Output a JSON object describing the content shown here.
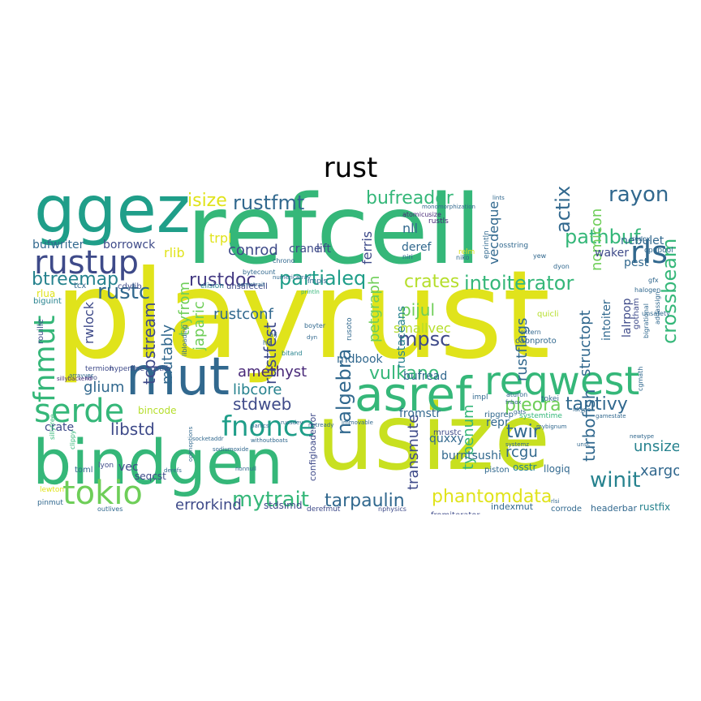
{
  "title": "rust",
  "palette": {
    "yellow": "#e0e31b",
    "lime": "#b5de2b",
    "light_green": "#6ece58",
    "green": "#35b779",
    "teal": "#1f9e89",
    "cyan_blue": "#26828e",
    "blue": "#31688e",
    "indigo": "#3e4a89",
    "purple": "#482878",
    "dark_purple": "#440154"
  },
  "words": [
    {
      "text": "playrust",
      "color": "#e0e31b"
    },
    {
      "text": "refcell",
      "color": "#35b779"
    },
    {
      "text": "usize",
      "color": "#c8e020"
    },
    {
      "text": "ggez",
      "color": "#1f9e89"
    },
    {
      "text": "bindgen",
      "color": "#35b779"
    },
    {
      "text": "mut",
      "color": "#31688e"
    },
    {
      "text": "asref",
      "color": "#35b779"
    },
    {
      "text": "reqwest",
      "color": "#35b779"
    },
    {
      "text": "rustup",
      "color": "#3e4a89"
    },
    {
      "text": "serde",
      "color": "#35b779"
    },
    {
      "text": "tokio",
      "color": "#6ece58"
    },
    {
      "text": "fnonce",
      "color": "#1f9e89"
    },
    {
      "text": "fnmut",
      "color": "#35b779"
    },
    {
      "text": "rls",
      "color": "#31688e"
    },
    {
      "text": "rayon",
      "color": "#31688e"
    },
    {
      "text": "rustfmt",
      "color": "#31688e"
    },
    {
      "text": "bufreader",
      "color": "#35b779"
    },
    {
      "text": "pathbuf",
      "color": "#35b779"
    },
    {
      "text": "isize",
      "color": "#e0e31b"
    },
    {
      "text": "rustc",
      "color": "#31688e"
    },
    {
      "text": "actix",
      "color": "#31688e"
    },
    {
      "text": "intoiterator",
      "color": "#35b779"
    },
    {
      "text": "crossbeam",
      "color": "#35b779"
    },
    {
      "text": "rustdoc",
      "color": "#443a83"
    },
    {
      "text": "partialeq",
      "color": "#1f9e89"
    },
    {
      "text": "crates",
      "color": "#b5de2b"
    },
    {
      "text": "btreemap",
      "color": "#26828e"
    },
    {
      "text": "nalgebra",
      "color": "#31688e"
    },
    {
      "text": "mpsc",
      "color": "#3e4a89"
    },
    {
      "text": "mytrait",
      "color": "#35b779"
    },
    {
      "text": "tarpaulin",
      "color": "#31688e"
    },
    {
      "text": "phantomdata",
      "color": "#e0e31b"
    },
    {
      "text": "winit",
      "color": "#26828e"
    },
    {
      "text": "tantivy",
      "color": "#31688e"
    },
    {
      "text": "pleora",
      "color": "#6ece58"
    },
    {
      "text": "vulkano",
      "color": "#35b779"
    },
    {
      "text": "stdweb",
      "color": "#3e4a89"
    },
    {
      "text": "libstd",
      "color": "#3e4a89"
    },
    {
      "text": "glium",
      "color": "#31688e"
    },
    {
      "text": "amethyst",
      "color": "#482878"
    },
    {
      "text": "libcore",
      "color": "#26828e"
    },
    {
      "text": "twir",
      "color": "#31688e"
    },
    {
      "text": "rcgu",
      "color": "#31688e"
    },
    {
      "text": "errorkind",
      "color": "#3e4a89"
    },
    {
      "text": "xargo",
      "color": "#31688e"
    },
    {
      "text": "unsized",
      "color": "#26828e"
    },
    {
      "text": "turbofish",
      "color": "#31688e"
    },
    {
      "text": "structopt",
      "color": "#31688e"
    },
    {
      "text": "rustflags",
      "color": "#31688e"
    },
    {
      "text": "pijul",
      "color": "#6ece58"
    },
    {
      "text": "smallvec",
      "color": "#b5de2b"
    },
    {
      "text": "rustfest",
      "color": "#3e4a89"
    },
    {
      "text": "petgraph",
      "color": "#6ece58"
    },
    {
      "text": "transmute",
      "color": "#3e4a89"
    },
    {
      "text": "typenum",
      "color": "#35b779"
    },
    {
      "text": "tcpstream",
      "color": "#3e4a89"
    },
    {
      "text": "mutably",
      "color": "#31688e"
    },
    {
      "text": "japaric",
      "color": "#6ece58"
    },
    {
      "text": "tryfrom",
      "color": "#6ece58"
    },
    {
      "text": "rustconf",
      "color": "#31688e"
    },
    {
      "text": "conrod",
      "color": "#3e4a89"
    },
    {
      "text": "rlib",
      "color": "#e0e31b"
    },
    {
      "text": "trpl",
      "color": "#e0e31b"
    },
    {
      "text": "crane",
      "color": "#3e4a89"
    },
    {
      "text": "lift",
      "color": "#3e4a89"
    },
    {
      "text": "borrowck",
      "color": "#3e4a89"
    },
    {
      "text": "bufwriter",
      "color": "#31688e"
    },
    {
      "text": "ferris",
      "color": "#3e4a89"
    },
    {
      "text": "nll",
      "color": "#31688e"
    },
    {
      "text": "deref",
      "color": "#31688e"
    },
    {
      "text": "vecdeque",
      "color": "#31688e"
    },
    {
      "text": "nomicon",
      "color": "#6ece58"
    },
    {
      "text": "nebulet",
      "color": "#31688e"
    },
    {
      "text": "waker",
      "color": "#3e4a89"
    },
    {
      "text": "pest",
      "color": "#31688e"
    },
    {
      "text": "intoiter",
      "color": "#31688e"
    },
    {
      "text": "lalrpop",
      "color": "#3e4a89"
    },
    {
      "text": "rwlock",
      "color": "#3e4a89"
    },
    {
      "text": "rustacean",
      "color": "#35b779"
    },
    {
      "text": "mdbook",
      "color": "#31688e"
    },
    {
      "text": "bufread",
      "color": "#31688e"
    },
    {
      "text": "quxxy",
      "color": "#31688e"
    },
    {
      "text": "burntsushi",
      "color": "#31688e"
    },
    {
      "text": "fromstr",
      "color": "#31688e"
    },
    {
      "text": "repr",
      "color": "#31688e"
    },
    {
      "text": "crate",
      "color": "#3e4a89"
    },
    {
      "text": "vec",
      "color": "#3e4a89"
    },
    {
      "text": "seqcst",
      "color": "#3e4a89"
    },
    {
      "text": "stdsimd",
      "color": "#3e4a89"
    },
    {
      "text": "rustfix",
      "color": "#26828e"
    },
    {
      "text": "headerbar",
      "color": "#31688e"
    },
    {
      "text": "corrode",
      "color": "#31688e"
    },
    {
      "text": "indexmut",
      "color": "#31688e"
    },
    {
      "text": "fromiterator",
      "color": "#3e4a89"
    },
    {
      "text": "llogiq",
      "color": "#31688e"
    },
    {
      "text": "piston",
      "color": "#31688e"
    },
    {
      "text": "ripgrep",
      "color": "#31688e"
    },
    {
      "text": "capnproto",
      "color": "#31688e"
    },
    {
      "text": "quicli",
      "color": "#b5de2b"
    },
    {
      "text": "gotham",
      "color": "#3e4a89"
    },
    {
      "text": "cdylib",
      "color": "#3e4a89"
    },
    {
      "text": "unsafecell",
      "color": "#3e4a89"
    },
    {
      "text": "elision",
      "color": "#26828e"
    },
    {
      "text": "rlua",
      "color": "#e0e31b"
    },
    {
      "text": "tcx",
      "color": "#31688e"
    },
    {
      "text": "biguint",
      "color": "#26828e"
    },
    {
      "text": "rouille",
      "color": "#3e4a89"
    },
    {
      "text": "termion",
      "color": "#3e4a89"
    },
    {
      "text": "hyperfine",
      "color": "#3e4a89"
    },
    {
      "text": "rustlib",
      "color": "#3e4a89"
    },
    {
      "text": "bincode",
      "color": "#b5de2b"
    },
    {
      "text": "mio",
      "color": "#3e4a89"
    },
    {
      "text": "sillybackend",
      "color": "#482878"
    },
    {
      "text": "sillytree",
      "color": "#35b779"
    },
    {
      "text": "clippy",
      "color": "#35b779"
    },
    {
      "text": "toml",
      "color": "#31688e"
    },
    {
      "text": "lyon",
      "color": "#3e4a89"
    },
    {
      "text": "lewton",
      "color": "#e0e31b"
    },
    {
      "text": "pinmut",
      "color": "#31688e"
    },
    {
      "text": "outlives",
      "color": "#31688e"
    },
    {
      "text": "derefmut",
      "color": "#3e4a89"
    },
    {
      "text": "nphysics",
      "color": "#3e4a89"
    },
    {
      "text": "chrono",
      "color": "#31688e"
    },
    {
      "text": "osstring",
      "color": "#31688e"
    },
    {
      "text": "rustls",
      "color": "#482878"
    },
    {
      "text": "atomicusize",
      "color": "#482878"
    },
    {
      "text": "cpupool",
      "color": "#31688e"
    },
    {
      "text": "redox",
      "color": "#31688e"
    },
    {
      "text": "halogen",
      "color": "#31688e"
    },
    {
      "text": "unsafety",
      "color": "#31688e"
    },
    {
      "text": "gfx",
      "color": "#31688e"
    },
    {
      "text": "addassign",
      "color": "#31688e"
    },
    {
      "text": "bigrational",
      "color": "#31688e"
    },
    {
      "text": "impl",
      "color": "#31688e"
    },
    {
      "text": "systemtime",
      "color": "#35b779"
    },
    {
      "text": "tokei",
      "color": "#31688e"
    },
    {
      "text": "osstr",
      "color": "#26828e"
    },
    {
      "text": "mrustc",
      "color": "#3e4a89"
    },
    {
      "text": "rustaceans",
      "color": "#26828e"
    },
    {
      "text": "bitand",
      "color": "#26828e"
    },
    {
      "text": "rusoto",
      "color": "#31688e"
    },
    {
      "text": "hir",
      "color": "#31688e"
    },
    {
      "text": "bij",
      "color": "#31688e"
    },
    {
      "text": "boyter",
      "color": "#31688e"
    },
    {
      "text": "dyn",
      "color": "#31688e"
    },
    {
      "text": "notready",
      "color": "#31688e"
    },
    {
      "text": "immovable",
      "color": "#31688e"
    },
    {
      "text": "russdev",
      "color": "#31688e"
    },
    {
      "text": "panics",
      "color": "#31688e"
    },
    {
      "text": "impls",
      "color": "#31688e"
    },
    {
      "text": "bytecount",
      "color": "#31688e"
    },
    {
      "text": "numericarray",
      "color": "#31688e"
    },
    {
      "text": "sometrait",
      "color": "#31688e"
    },
    {
      "text": "eprintln",
      "color": "#31688e"
    },
    {
      "text": "println",
      "color": "#35b779"
    },
    {
      "text": "monomorphization",
      "color": "#31688e"
    },
    {
      "text": "lints",
      "color": "#31688e"
    },
    {
      "text": "niri",
      "color": "#31688e"
    },
    {
      "text": "niko",
      "color": "#31688e"
    },
    {
      "text": "relm",
      "color": "#e0e31b"
    },
    {
      "text": "yew",
      "color": "#31688e"
    },
    {
      "text": "dyon",
      "color": "#31688e"
    },
    {
      "text": "extern",
      "color": "#31688e"
    },
    {
      "text": "aturon",
      "color": "#31688e"
    },
    {
      "text": "fnbox",
      "color": "#31688e"
    },
    {
      "text": "gats",
      "color": "#31688e"
    },
    {
      "text": "idtype",
      "color": "#31688e"
    },
    {
      "text": "gamestate",
      "color": "#31688e"
    },
    {
      "text": "cgmath",
      "color": "#31688e"
    },
    {
      "text": "newtype",
      "color": "#31688e"
    },
    {
      "text": "unsc",
      "color": "#31688e"
    },
    {
      "text": "systemz",
      "color": "#31688e"
    },
    {
      "text": "rlsi",
      "color": "#31688e"
    },
    {
      "text": "mybignum",
      "color": "#31688e"
    },
    {
      "text": "configloaderror",
      "color": "#3e4a89"
    },
    {
      "text": "socketaddr",
      "color": "#31688e"
    },
    {
      "text": "nonnull",
      "color": "#31688e"
    },
    {
      "text": "derefs",
      "color": "#31688e"
    },
    {
      "text": "withoutboats",
      "color": "#31688e"
    },
    {
      "text": "sodiumoxide",
      "color": "#31688e"
    },
    {
      "text": "openoptions",
      "color": "#31688e"
    },
    {
      "text": "arrayvec",
      "color": "#31688e"
    },
    {
      "text": "libloading",
      "color": "#31688e"
    }
  ]
}
